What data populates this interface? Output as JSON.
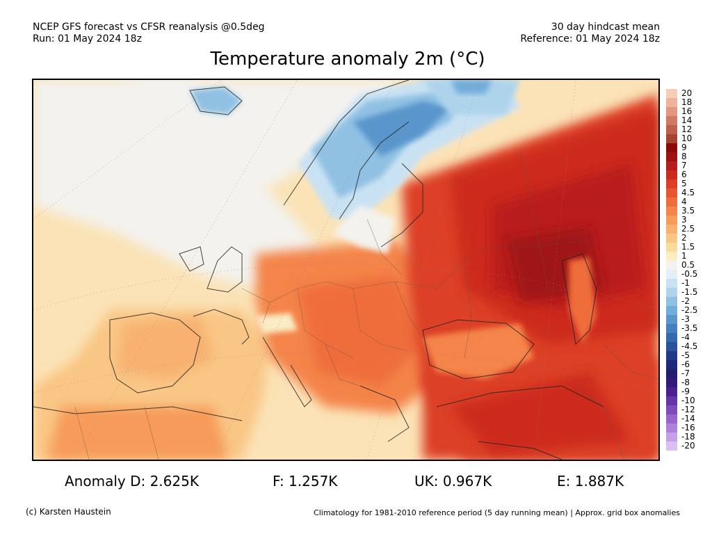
{
  "header": {
    "left_line1": "NCEP GFS forecast vs CFSR reanalysis @0.5deg",
    "left_line2": "Run: 01 May 2024 18z",
    "right_line1": "30 day hindcast mean",
    "right_line2": "Reference: 01 May 2024 18z"
  },
  "title": "Temperature anomaly 2m (°C)",
  "legend": {
    "labels": [
      "20",
      "18",
      "16",
      "14",
      "12",
      "10",
      "9",
      "8",
      "7",
      "6",
      "5",
      "4.5",
      "4",
      "3.5",
      "3",
      "2.5",
      "2",
      "1.5",
      "1",
      "0.5",
      "-0.5",
      "-1",
      "-1.5",
      "-2",
      "-2.5",
      "-3",
      "-3.5",
      "-4",
      "-4.5",
      "-5",
      "-6",
      "-7",
      "-8",
      "-9",
      "-10",
      "-12",
      "-14",
      "-16",
      "-18",
      "-20"
    ],
    "colors": [
      "#f7cdb9",
      "#efb29a",
      "#e3977f",
      "#d07a66",
      "#bd5f4d",
      "#a64432",
      "#8b0a0a",
      "#a01212",
      "#b91c1c",
      "#cc2a1d",
      "#dc3f26",
      "#e65630",
      "#ef6d3b",
      "#f48449",
      "#f79b5a",
      "#f8b16f",
      "#f9c685",
      "#fadb9d",
      "#fbecc4",
      "#f3f2ee",
      "#e3eef8",
      "#c9e2f3",
      "#aed4ec",
      "#90c1e3",
      "#72acd9",
      "#5a96cc",
      "#457fbd",
      "#3569ad",
      "#28529b",
      "#1d3c88",
      "#1a2a78",
      "#241c6e",
      "#35187c",
      "#4b208e",
      "#6634a6",
      "#7e4cbb",
      "#9765cd",
      "#ae82dc",
      "#c4a0e8",
      "#d8c0f2"
    ]
  },
  "stats": {
    "d": "Anomaly D: 2.625K",
    "f": "F: 1.257K",
    "uk": "UK: 0.967K",
    "e": "E: 1.887K"
  },
  "footer": {
    "left": "(c) Karsten Haustein",
    "right": "Climatology for 1981-2010 reference period (5 day running mean) | Approx. grid box anomalies"
  }
}
